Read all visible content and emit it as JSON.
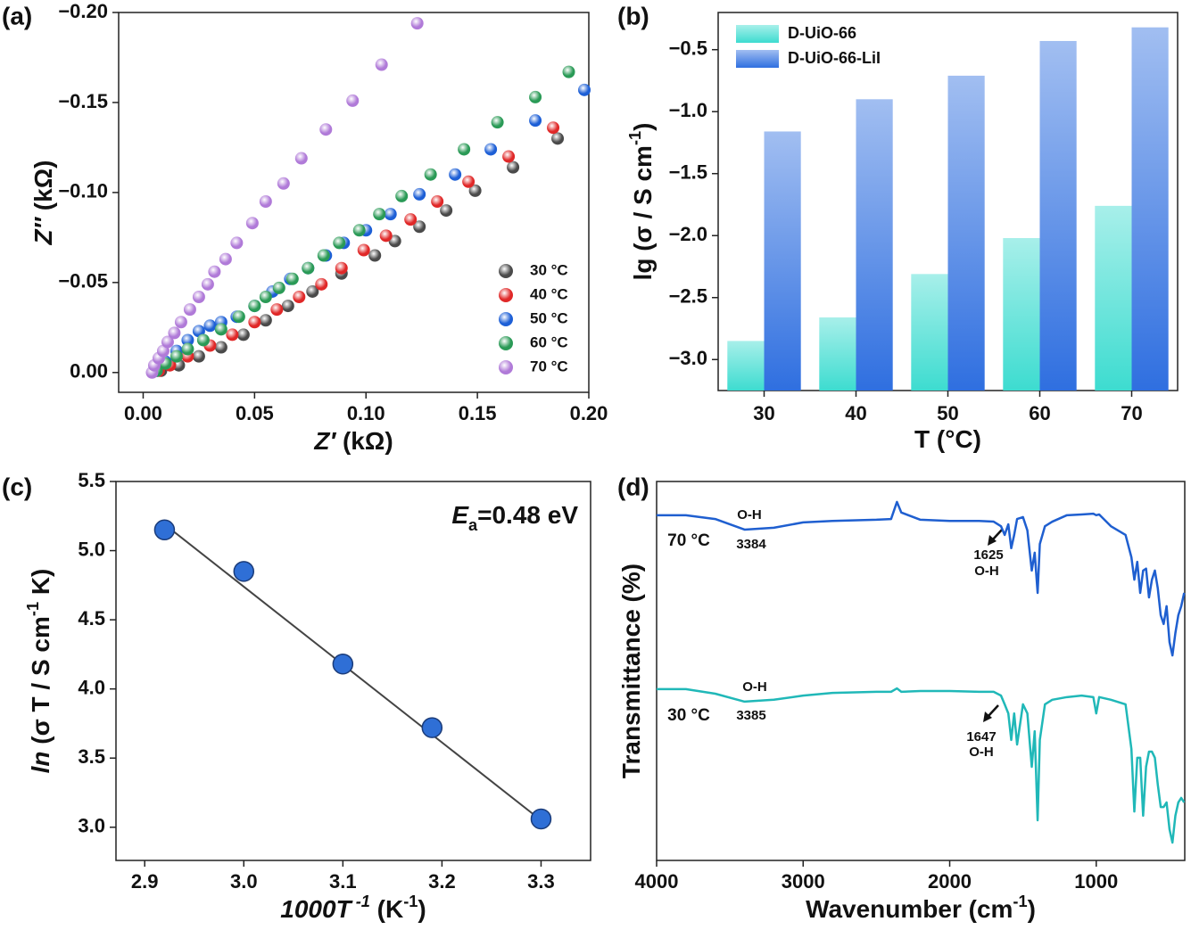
{
  "chart_data": [
    {
      "type": "scatter",
      "panel_label": "(a)",
      "x_label": [
        {
          "text": "Z′",
          "italic": true
        },
        {
          "text": " (kΩ)"
        }
      ],
      "y_label": [
        {
          "text": "Z″",
          "italic": true
        },
        {
          "text": " (kΩ)"
        }
      ],
      "xlim": [
        -0.011,
        0.2
      ],
      "ylim": [
        0.011,
        -0.2
      ],
      "xticks": [
        {
          "value": 0,
          "label": "0.00"
        },
        0.05,
        {
          "value": 0.1,
          "label": "0.10"
        },
        0.15,
        {
          "value": 0.2,
          "label": "0.20"
        }
      ],
      "yticks": [
        {
          "value": 0,
          "label": "0.00"
        },
        {
          "value": -0.05,
          "label": "−0.05"
        },
        {
          "value": -0.1,
          "label": "−0.10"
        },
        {
          "value": -0.15,
          "label": "−0.15"
        },
        {
          "value": -0.2,
          "label": "−0.20"
        }
      ],
      "legend": "lower right",
      "series": [
        {
          "name": "30 °C",
          "color": "#4a4a4a",
          "x": [
            0.008,
            0.016,
            0.025,
            0.035,
            0.045,
            0.055,
            0.065,
            0.076,
            0.089,
            0.104,
            0.113,
            0.124,
            0.136,
            0.149,
            0.166,
            0.186
          ],
          "values": [
            -0.001,
            -0.004,
            -0.009,
            -0.014,
            -0.021,
            -0.029,
            -0.037,
            -0.045,
            -0.055,
            -0.065,
            -0.073,
            -0.081,
            -0.09,
            -0.101,
            -0.114,
            -0.13
          ]
        },
        {
          "name": "40 °C",
          "color": "#e02828",
          "x": [
            0.007,
            0.012,
            0.02,
            0.03,
            0.04,
            0.05,
            0.06,
            0.07,
            0.08,
            0.089,
            0.099,
            0.109,
            0.12,
            0.132,
            0.146,
            0.164,
            0.184
          ],
          "values": [
            -0.001,
            -0.004,
            -0.009,
            -0.015,
            -0.021,
            -0.028,
            -0.035,
            -0.042,
            -0.049,
            -0.058,
            -0.068,
            -0.076,
            -0.085,
            -0.095,
            -0.106,
            -0.12,
            -0.136
          ]
        },
        {
          "name": "50 °C",
          "color": "#1d5fd6",
          "x": [
            0.006,
            0.01,
            0.015,
            0.02,
            0.025,
            0.03,
            0.035,
            0.042,
            0.05,
            0.058,
            0.066,
            0.074,
            0.082,
            0.09,
            0.1,
            0.111,
            0.124,
            0.14,
            0.156,
            0.176,
            0.198
          ],
          "values": [
            -0.001,
            -0.006,
            -0.012,
            -0.018,
            -0.023,
            -0.026,
            -0.028,
            -0.031,
            -0.037,
            -0.045,
            -0.052,
            -0.058,
            -0.065,
            -0.072,
            -0.079,
            -0.088,
            -0.099,
            -0.11,
            -0.124,
            -0.14,
            -0.157
          ]
        },
        {
          "name": "60 °C",
          "color": "#2a9a56",
          "x": [
            0.006,
            0.01,
            0.015,
            0.02,
            0.027,
            0.035,
            0.043,
            0.05,
            0.055,
            0.061,
            0.067,
            0.074,
            0.081,
            0.088,
            0.097,
            0.106,
            0.116,
            0.129,
            0.144,
            0.159,
            0.176,
            0.191
          ],
          "values": [
            -0.001,
            -0.005,
            -0.009,
            -0.013,
            -0.018,
            -0.024,
            -0.031,
            -0.037,
            -0.042,
            -0.047,
            -0.052,
            -0.058,
            -0.065,
            -0.072,
            -0.079,
            -0.088,
            -0.098,
            -0.11,
            -0.124,
            -0.139,
            -0.153,
            -0.167
          ]
        },
        {
          "name": "70 °C",
          "color": "#b07ad8",
          "x": [
            0.004,
            0.005,
            0.007,
            0.009,
            0.011,
            0.014,
            0.017,
            0.021,
            0.025,
            0.029,
            0.032,
            0.037,
            0.042,
            0.049,
            0.055,
            0.063,
            0.071,
            0.082,
            0.094,
            0.107,
            0.123
          ],
          "values": [
            0,
            -0.004,
            -0.008,
            -0.012,
            -0.017,
            -0.022,
            -0.028,
            -0.035,
            -0.042,
            -0.049,
            -0.056,
            -0.063,
            -0.072,
            -0.083,
            -0.095,
            -0.105,
            -0.119,
            -0.135,
            -0.151,
            -0.171,
            -0.194
          ]
        }
      ]
    },
    {
      "type": "bar",
      "panel_label": "(b)",
      "x_label": [
        {
          "text": "T (°C)"
        }
      ],
      "y_label": [
        {
          "text": "lg (σ / S cm"
        },
        {
          "text": "-1",
          "sup": true
        },
        {
          "text": ")"
        }
      ],
      "categories": [
        "30",
        "40",
        "50",
        "60",
        "70"
      ],
      "ylim": [
        -3.25,
        -0.2
      ],
      "yticks": [
        {
          "value": -3,
          "label": "−3.0"
        },
        {
          "value": -2.5,
          "label": "−2.5"
        },
        {
          "value": -2,
          "label": "−2.0"
        },
        {
          "value": -1.5,
          "label": "−1.5"
        },
        {
          "value": -1,
          "label": "−1.0"
        },
        {
          "value": -0.5,
          "label": "−0.5"
        }
      ],
      "legend": "upper left",
      "series": [
        {
          "name": "D-UiO-66",
          "color": "#3ddcd0",
          "values": [
            -2.85,
            -2.66,
            -2.31,
            -2.02,
            -1.76
          ]
        },
        {
          "name": "D-UiO-66-LiI",
          "color": "#2f6fe0",
          "values": [
            -1.16,
            -0.9,
            -0.71,
            -0.43,
            -0.32
          ]
        }
      ]
    },
    {
      "type": "scatter",
      "panel_label": "(c)",
      "x_label": [
        {
          "text": "1000T",
          "italic": true
        },
        {
          "text": " -1",
          "italic": true,
          "sup": true
        },
        {
          "text": " (K"
        },
        {
          "text": "-1",
          "sup": true
        },
        {
          "text": ")"
        }
      ],
      "y_label": [
        {
          "text": "ln",
          "italic": true
        },
        {
          "text": " (σ T / S cm"
        },
        {
          "text": "-1",
          "sup": true
        },
        {
          "text": " K)"
        }
      ],
      "xlim": [
        2.871,
        3.35
      ],
      "ylim": [
        2.76,
        5.5
      ],
      "xticks": [
        2.9,
        {
          "value": 3,
          "label": "3.0"
        },
        3.1,
        3.2,
        3.3
      ],
      "yticks": [
        {
          "value": 3,
          "label": "3.0"
        },
        3.5,
        {
          "value": 4,
          "label": "4.0"
        },
        4.5,
        {
          "value": 5,
          "label": "5.0"
        },
        5.5
      ],
      "annotation": [
        {
          "text": "E",
          "italic": true
        },
        {
          "text": "a",
          "sub": true
        },
        {
          "text": "=0.48 eV"
        }
      ],
      "series": [
        {
          "color": "#2f6fd6",
          "x": [
            2.92,
            3.0,
            3.1,
            3.19,
            3.3
          ],
          "values": [
            5.15,
            4.85,
            4.18,
            3.72,
            3.06
          ]
        }
      ],
      "fit": {
        "color": "#444444",
        "x": [
          2.92,
          3.3
        ],
        "values": [
          5.19,
          3.05
        ]
      }
    },
    {
      "type": "line",
      "panel_label": "(d)",
      "x_label": [
        {
          "text": "Wavenumber (cm"
        },
        {
          "text": "-1",
          "sup": true
        },
        {
          "text": ")"
        }
      ],
      "y_label": [
        {
          "text": "Transmittance (%)"
        }
      ],
      "xlim": [
        4000,
        396
      ],
      "ylim": [
        0,
        100
      ],
      "xticks": [
        4000,
        3000,
        2000,
        1000
      ],
      "x": [
        4000,
        3800,
        3600,
        3400,
        3200,
        3000,
        2800,
        2500,
        2400,
        2360,
        2330,
        2200,
        2000,
        1800,
        1700,
        1650,
        1625,
        1600,
        1580,
        1560,
        1540,
        1500,
        1470,
        1440,
        1420,
        1400,
        1385,
        1350,
        1300,
        1200,
        1100,
        1020,
        1000,
        980,
        900,
        800,
        760,
        740,
        720,
        700,
        680,
        660,
        640,
        620,
        600,
        580,
        560,
        540,
        520,
        500,
        480,
        460,
        440,
        420,
        400
      ],
      "series": [
        {
          "name": "70 °C",
          "color": "#1f5fd0",
          "values": [
            91.1,
            91.1,
            90.1,
            87.3,
            87.8,
            89.2,
            89.6,
            89.9,
            90.1,
            94.6,
            91.8,
            89.9,
            89.6,
            89.6,
            89.4,
            88.2,
            85.9,
            88.7,
            82.4,
            85.9,
            90.1,
            90.6,
            87.1,
            76.5,
            81.2,
            70.6,
            83.5,
            88.2,
            89.4,
            91.1,
            91.3,
            91.5,
            91.1,
            91.3,
            88.2,
            85.9,
            80.0,
            74.1,
            78.8,
            70.6,
            76.5,
            77.0,
            69.4,
            74.1,
            76.5,
            71.8,
            64.7,
            62.4,
            67.1,
            57.6,
            54.1,
            60.0,
            64.7,
            67.1,
            70.6
          ]
        },
        {
          "name": "30 °C",
          "color": "#20b8b8",
          "values": [
            45.2,
            45.2,
            44.0,
            41.9,
            42.4,
            43.5,
            44.2,
            44.5,
            44.5,
            45.4,
            44.5,
            44.7,
            44.7,
            44.5,
            44.5,
            43.5,
            41.2,
            38.8,
            31.8,
            38.8,
            30.6,
            41.2,
            38.8,
            24.7,
            34.1,
            10.6,
            31.8,
            41.2,
            42.4,
            43.1,
            43.5,
            43.1,
            38.8,
            43.1,
            42.4,
            41.2,
            29.4,
            12.9,
            27.1,
            27.1,
            11.8,
            24.7,
            28.7,
            28.7,
            27.1,
            20.0,
            14.1,
            14.1,
            15.3,
            8.2,
            4.7,
            11.8,
            15.3,
            16.5,
            15.3
          ]
        }
      ],
      "annotations": [
        {
          "text": "O-H"
        },
        {
          "text": "3384"
        },
        {
          "text": "1625"
        },
        {
          "text": "O-H"
        },
        {
          "text": "O-H"
        },
        {
          "text": "3385"
        },
        {
          "text": "1647"
        },
        {
          "text": "O-H"
        }
      ]
    }
  ]
}
